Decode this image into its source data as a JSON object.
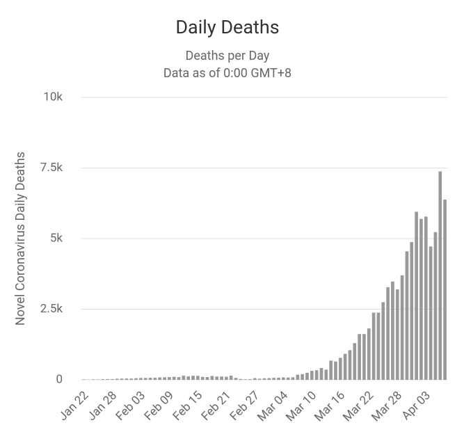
{
  "chart_data": {
    "type": "bar",
    "title": "Daily Deaths",
    "subtitle": [
      "Deaths per Day",
      "Data as of 0:00 GMT+8"
    ],
    "y_label": "Novel Coronavirus Daily Deaths",
    "color": "#999999",
    "grid": true,
    "ylim": [
      0,
      10000
    ],
    "yticks": [
      0,
      {
        "value": 2500,
        "label": "2.5k"
      },
      {
        "value": 5000,
        "label": "5k"
      },
      {
        "value": 7500,
        "label": "7.5k"
      },
      {
        "value": 10000,
        "label": "10k"
      }
    ],
    "categories": [
      "Jan 22",
      null,
      null,
      null,
      null,
      null,
      "Jan 28",
      null,
      null,
      null,
      null,
      null,
      "Feb 03",
      null,
      null,
      null,
      null,
      null,
      "Feb 09",
      null,
      null,
      null,
      null,
      null,
      "Feb 15",
      null,
      null,
      null,
      null,
      null,
      "Feb 21",
      null,
      null,
      null,
      null,
      null,
      "Feb 27",
      null,
      null,
      null,
      null,
      null,
      "Mar 04",
      null,
      null,
      null,
      null,
      null,
      "Mar 10",
      null,
      null,
      null,
      null,
      null,
      "Mar 16",
      null,
      null,
      null,
      null,
      null,
      "Mar 22",
      null,
      null,
      null,
      null,
      null,
      "Mar 28",
      null,
      null,
      null,
      null,
      null,
      "Apr 03",
      null,
      null,
      null,
      null
    ],
    "values": [
      17,
      8,
      16,
      14,
      24,
      26,
      26,
      38,
      43,
      46,
      45,
      57,
      64,
      66,
      73,
      73,
      86,
      89,
      97,
      108,
      97,
      146,
      121,
      143,
      142,
      105,
      98,
      136,
      115,
      118,
      109,
      150,
      70,
      30,
      20,
      25,
      60,
      40,
      55,
      60,
      70,
      75,
      85,
      80,
      90,
      180,
      200,
      250,
      320,
      340,
      420,
      360,
      680,
      650,
      780,
      920,
      1050,
      1300,
      1620,
      1620,
      1820,
      2380,
      2380,
      2750,
      3280,
      3480,
      3200,
      3700,
      4550,
      4880,
      5950,
      5700,
      5780,
      4720,
      5230,
      7380,
      6380
    ]
  }
}
